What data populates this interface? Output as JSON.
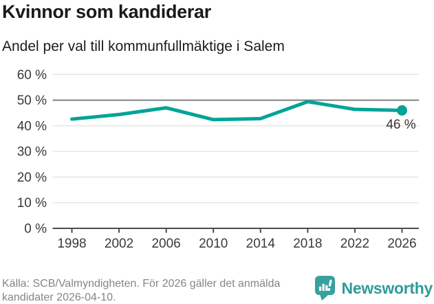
{
  "header": {
    "title": "Kvinnor som kandiderar",
    "subtitle": "Andel per val till kommunfullmäktige i Salem"
  },
  "chart_data": {
    "type": "line",
    "title": "Kvinnor som kandiderar",
    "subtitle": "Andel per val till kommunfullmäktige i Salem",
    "categories": [
      "1998",
      "2002",
      "2006",
      "2010",
      "2014",
      "2018",
      "2022",
      "2026"
    ],
    "values": [
      42.6,
      44.4,
      47,
      42.4,
      42.8,
      49.4,
      46.4,
      46
    ],
    "unit": "%",
    "ylim": [
      0,
      60
    ],
    "y_ticks": [
      0,
      10,
      20,
      30,
      40,
      50,
      60
    ],
    "y_tick_labels": [
      "0 %",
      "10 %",
      "20 %",
      "30 %",
      "40 %",
      "50 %",
      "60 %"
    ],
    "reference_line_value": 50,
    "end_point_label": "46 %",
    "line_color": "#00a398",
    "grid": true,
    "legend_position": "none"
  },
  "footer": {
    "source": "Källa: SCB/Valmyndigheten. För 2026 gäller det anmälda kandidater 2026-04-10."
  },
  "branding": {
    "logo_text": "Newsworthy",
    "logo_icon": "newsworthy-speech-bubble-bar-chart-icon",
    "brand_color": "#2e9c98"
  }
}
